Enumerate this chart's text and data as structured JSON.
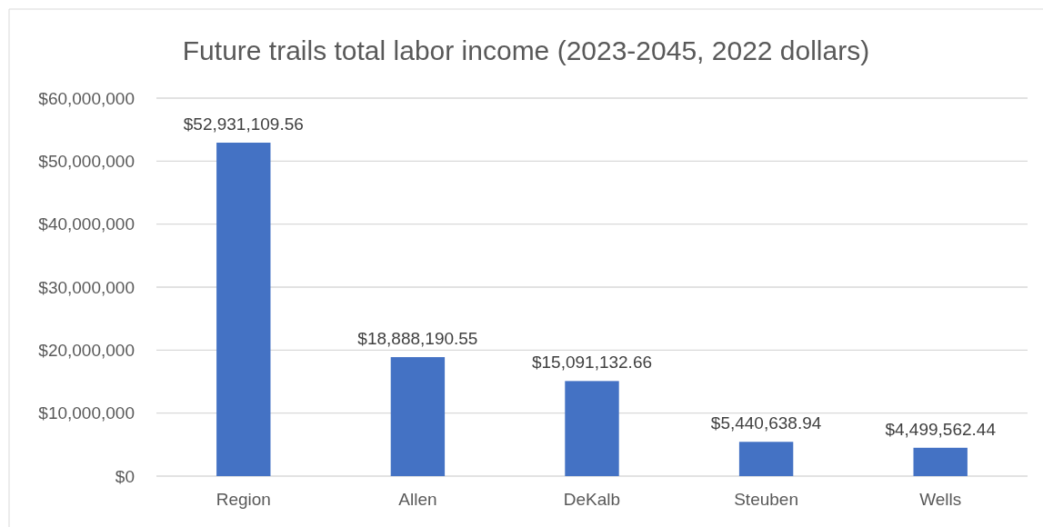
{
  "chart_data": {
    "type": "bar",
    "title": "Future trails total labor income (2023-2045, 2022 dollars)",
    "categories": [
      "Region",
      "Allen",
      "DeKalb",
      "Steuben",
      "Wells"
    ],
    "values": [
      52931109.56,
      18888190.55,
      15091132.66,
      5440638.94,
      4499562.44
    ],
    "value_labels": [
      "$52,931,109.56",
      "$18,888,190.55",
      "$15,091,132.66",
      "$5,440,638.94",
      "$4,499,562.44"
    ],
    "color": "#4472c4",
    "ylim": [
      0,
      60000000
    ],
    "yticks": [
      {
        "value": 0,
        "label": "$0"
      },
      {
        "value": 10000000,
        "label": "$10,000,000"
      },
      {
        "value": 20000000,
        "label": "$20,000,000"
      },
      {
        "value": 30000000,
        "label": "$30,000,000"
      },
      {
        "value": 40000000,
        "label": "$40,000,000"
      },
      {
        "value": 50000000,
        "label": "$50,000,000"
      },
      {
        "value": 60000000,
        "label": "$60,000,000"
      }
    ],
    "grid": "y"
  }
}
